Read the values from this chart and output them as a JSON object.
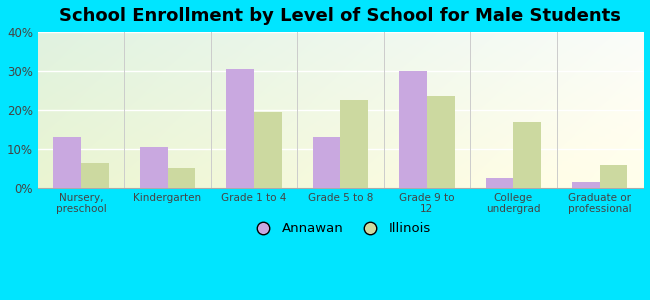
{
  "title": "School Enrollment by Level of School for Male Students",
  "categories": [
    "Nursery,\npreschool",
    "Kindergarten",
    "Grade 1 to 4",
    "Grade 5 to 8",
    "Grade 9 to\n12",
    "College\nundergrad",
    "Graduate or\nprofessional"
  ],
  "annawan_values": [
    13,
    10.5,
    30.5,
    13,
    30,
    2.5,
    1.5
  ],
  "illinois_values": [
    6.5,
    5,
    19.5,
    22.5,
    23.5,
    17,
    6
  ],
  "annawan_color": "#c9a8e0",
  "illinois_color": "#ccd9a0",
  "background_color": "#00e5ff",
  "ylim": [
    0,
    40
  ],
  "yticks": [
    0,
    10,
    20,
    30,
    40
  ],
  "ytick_labels": [
    "0%",
    "10%",
    "20%",
    "30%",
    "40%"
  ],
  "title_fontsize": 13,
  "legend_labels": [
    "Annawan",
    "Illinois"
  ],
  "bar_width": 0.32
}
